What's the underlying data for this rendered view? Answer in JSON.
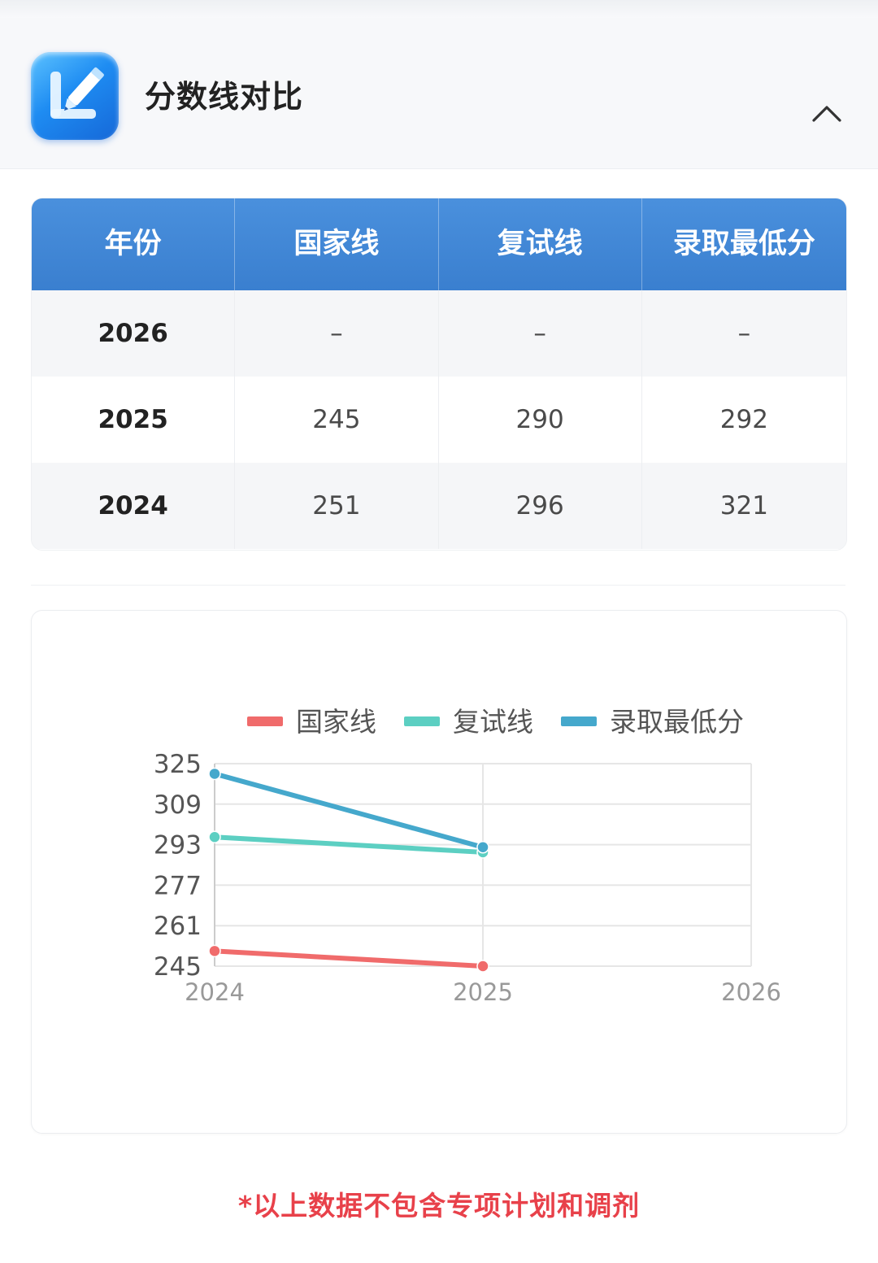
{
  "section": {
    "title": "分数线对比",
    "icon": "edit-pencil-icon",
    "collapse_icon": "chevron-up-icon"
  },
  "table": {
    "headers": [
      "年份",
      "国家线",
      "复试线",
      "录取最低分"
    ],
    "rows": [
      [
        "2026",
        "–",
        "–",
        "–"
      ],
      [
        "2025",
        "245",
        "290",
        "292"
      ],
      [
        "2024",
        "251",
        "296",
        "321"
      ]
    ],
    "header_color": "#3f86d6"
  },
  "chart_data": {
    "type": "line",
    "x": [
      "2024",
      "2025",
      "2026"
    ],
    "yticks": [
      "245",
      "261",
      "277",
      "293",
      "309",
      "325"
    ],
    "ylim": [
      245,
      325
    ],
    "grid": true,
    "legend_position": "top",
    "series": [
      {
        "name": "国家线",
        "color": "#f06b6b",
        "values": [
          251,
          245,
          null
        ]
      },
      {
        "name": "复试线",
        "color": "#5ccfc2",
        "values": [
          296,
          290,
          null
        ]
      },
      {
        "name": "录取最低分",
        "color": "#45a8cc",
        "values": [
          321,
          292,
          null
        ]
      }
    ]
  },
  "footnote": "*以上数据不包含专项计划和调剂"
}
